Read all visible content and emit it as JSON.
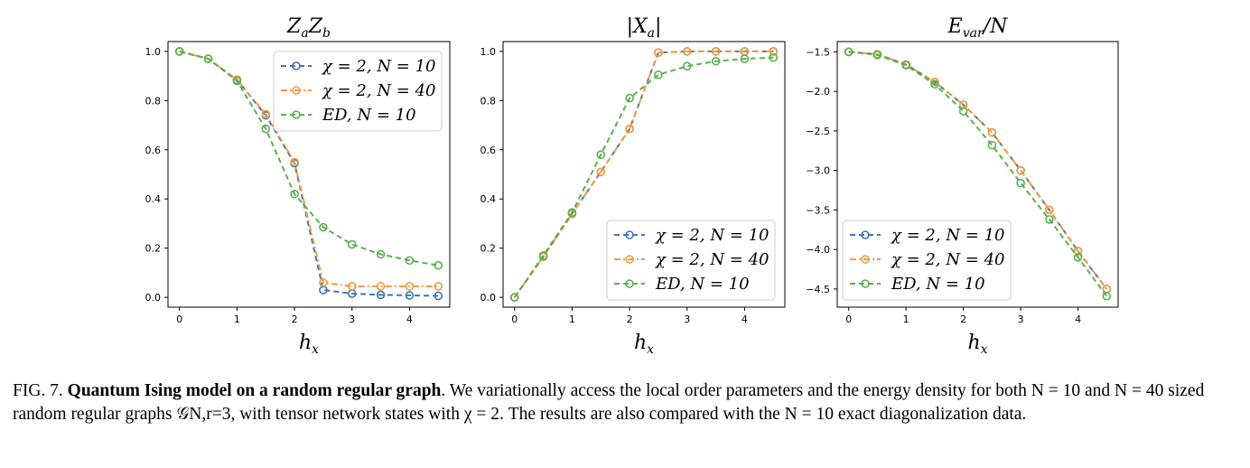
{
  "chart_data": [
    {
      "type": "line",
      "title": "Z_a Z_b",
      "title_parts": {
        "base1": "Z",
        "sub1": "a",
        "base2": "Z",
        "sub2": "b"
      },
      "xlabel": "h_x",
      "xlabel_parts": {
        "base": "h",
        "sub": "x"
      },
      "xlim": [
        -0.2,
        4.7
      ],
      "ylim": [
        -0.04,
        1.04
      ],
      "xticks": [
        0,
        1,
        2,
        3,
        4
      ],
      "yticks": [
        0.0,
        0.2,
        0.4,
        0.6,
        0.8,
        1.0
      ],
      "ytick_labels": [
        "0.0",
        "0.2",
        "0.4",
        "0.6",
        "0.8",
        "1.0"
      ],
      "legend": "top-right",
      "x": [
        0,
        0.5,
        1,
        1.5,
        2,
        2.5,
        3,
        3.5,
        4,
        4.5
      ],
      "series": [
        {
          "name": "χ = 2, N = 10",
          "color": "#3b78b5",
          "dash": "dashed",
          "values": [
            1.0,
            0.97,
            0.885,
            0.74,
            0.545,
            0.03,
            0.015,
            0.01,
            0.008,
            0.006
          ]
        },
        {
          "name": "χ = 2, N = 40",
          "color": "#f39b42",
          "dash": "dashdot",
          "values": [
            1.0,
            0.97,
            0.885,
            0.745,
            0.55,
            0.06,
            0.045,
            0.045,
            0.045,
            0.045
          ]
        },
        {
          "name": "ED, N = 10",
          "color": "#59b04f",
          "dash": "dashed",
          "values": [
            1.0,
            0.97,
            0.88,
            0.685,
            0.42,
            0.285,
            0.215,
            0.175,
            0.15,
            0.13
          ]
        }
      ]
    },
    {
      "type": "line",
      "title": "|X_a|",
      "title_parts": {
        "base1": "|X",
        "sub1": "a",
        "base2": "|",
        "sub2": ""
      },
      "xlabel": "h_x",
      "xlabel_parts": {
        "base": "h",
        "sub": "x"
      },
      "xlim": [
        -0.2,
        4.7
      ],
      "ylim": [
        -0.04,
        1.04
      ],
      "xticks": [
        0,
        1,
        2,
        3,
        4
      ],
      "yticks": [
        0.0,
        0.2,
        0.4,
        0.6,
        0.8,
        1.0
      ],
      "ytick_labels": [
        "0.0",
        "0.2",
        "0.4",
        "0.6",
        "0.8",
        "1.0"
      ],
      "legend": "bottom-right",
      "x": [
        0,
        0.5,
        1,
        1.5,
        2,
        2.5,
        3,
        3.5,
        4,
        4.5
      ],
      "series": [
        {
          "name": "χ = 2, N = 10",
          "color": "#3b78b5",
          "dash": "dashed",
          "values": [
            0.0,
            0.165,
            0.34,
            0.51,
            0.685,
            0.995,
            1.0,
            1.0,
            1.0,
            1.0
          ]
        },
        {
          "name": "χ = 2, N = 40",
          "color": "#f39b42",
          "dash": "dashdot",
          "values": [
            0.0,
            0.165,
            0.34,
            0.51,
            0.685,
            0.995,
            1.0,
            1.0,
            1.0,
            1.0
          ]
        },
        {
          "name": "ED, N = 10",
          "color": "#59b04f",
          "dash": "dashed",
          "values": [
            0.0,
            0.17,
            0.345,
            0.58,
            0.81,
            0.905,
            0.94,
            0.96,
            0.97,
            0.975
          ]
        }
      ]
    },
    {
      "type": "line",
      "title": "E_var/N",
      "title_parts": {
        "base1": "E",
        "sub1": "var",
        "base2": "/N",
        "sub2": ""
      },
      "xlabel": "h_x",
      "xlabel_parts": {
        "base": "h",
        "sub": "x"
      },
      "xlim": [
        -0.2,
        4.7
      ],
      "ylim": [
        -4.73,
        -1.37
      ],
      "xticks": [
        0,
        1,
        2,
        3,
        4
      ],
      "yticks": [
        -1.5,
        -2.0,
        -2.5,
        -3.0,
        -3.5,
        -4.0,
        -4.5
      ],
      "ytick_labels": [
        "−1.5",
        "−2.0",
        "−2.5",
        "−3.0",
        "−3.5",
        "−4.0",
        "−4.5"
      ],
      "legend": "bottom-left",
      "x": [
        0,
        0.5,
        1,
        1.5,
        2,
        2.5,
        3,
        3.5,
        4,
        4.5
      ],
      "series": [
        {
          "name": "χ = 2, N = 10",
          "color": "#3b78b5",
          "dash": "dashed",
          "values": [
            -1.5,
            -1.53,
            -1.66,
            -1.88,
            -2.17,
            -2.52,
            -3.0,
            -3.5,
            -4.02,
            -4.5
          ]
        },
        {
          "name": "χ = 2, N = 40",
          "color": "#f39b42",
          "dash": "dashdot",
          "values": [
            -1.5,
            -1.53,
            -1.66,
            -1.88,
            -2.17,
            -2.52,
            -3.0,
            -3.5,
            -4.02,
            -4.5
          ]
        },
        {
          "name": "ED, N = 10",
          "color": "#59b04f",
          "dash": "dashed",
          "values": [
            -1.5,
            -1.54,
            -1.67,
            -1.91,
            -2.25,
            -2.68,
            -3.16,
            -3.62,
            -4.1,
            -4.59
          ]
        }
      ]
    }
  ],
  "caption": {
    "label": "FIG. 7.",
    "title": "Quantum Ising model on a random regular graph",
    "text": ". We variationally access the local order parameters and the energy density for both N = 10 and N = 40 sized random regular graphs 𝒢N,r=3, with tensor network states with χ = 2. The results are also compared with the N = 10 exact diagonalization data."
  }
}
